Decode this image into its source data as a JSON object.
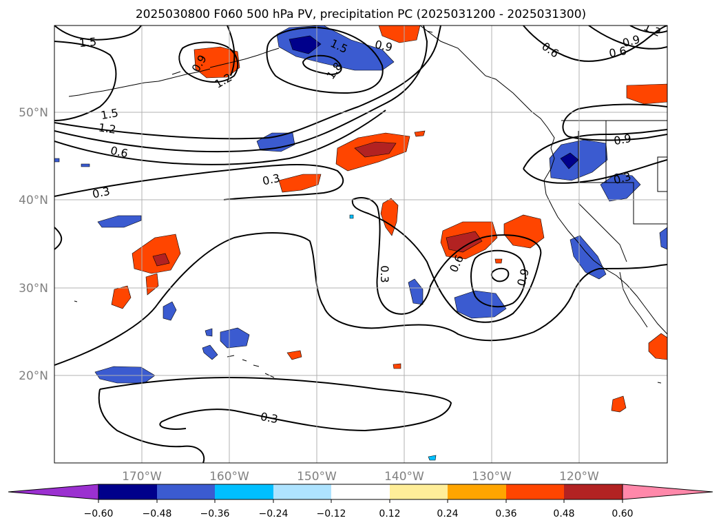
{
  "title": "2025030800 F060 500 hPa PV, precipitation PC (2025031200 - 2025031300)",
  "map": {
    "lat_labels": [
      "50°N",
      "40°N",
      "30°N",
      "20°N"
    ],
    "lon_labels": [
      "170°W",
      "160°W",
      "150°W",
      "140°W",
      "130°W",
      "120°W"
    ],
    "gridlines": true,
    "contour_labels": [
      "1.5",
      "1.5",
      "1.2",
      "1.5",
      "0.6",
      "0.3",
      "0.3",
      "0.3",
      "0.3",
      "0.6",
      "0.9",
      "0.9",
      "0.9",
      "0.6",
      "0.6",
      "0.3",
      "1.2",
      "0.9",
      "1.8",
      "1.2",
      "0.9"
    ]
  },
  "colorbar": {
    "tick_labels": [
      "−0.60",
      "−0.48",
      "−0.36",
      "−0.24",
      "−0.12",
      "0.12",
      "0.24",
      "0.36",
      "0.48",
      "0.60"
    ],
    "colors": [
      "#9b30d0",
      "#00008b",
      "#3b5bd0",
      "#00bfff",
      "#aee3ff",
      "#ffffff",
      "#ffee99",
      "#ffa500",
      "#ff4500",
      "#b22222",
      "#ff88aa"
    ]
  }
}
